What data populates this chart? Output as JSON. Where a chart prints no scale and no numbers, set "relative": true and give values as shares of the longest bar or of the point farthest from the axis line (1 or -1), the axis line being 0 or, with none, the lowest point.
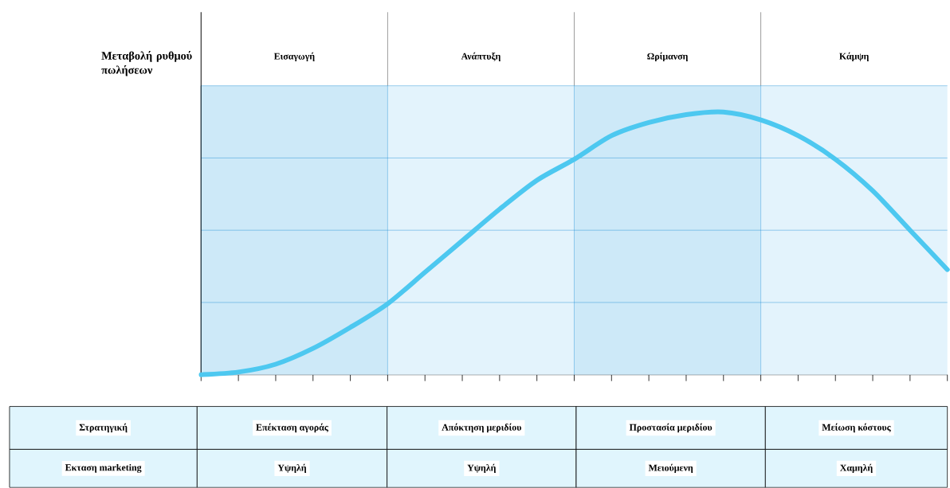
{
  "chart_data": {
    "type": "line",
    "relative": true,
    "categories": [
      null,
      null,
      null,
      null,
      null,
      null,
      null,
      null,
      null,
      null,
      null,
      null,
      null,
      null,
      null,
      null,
      null,
      null,
      null,
      null,
      null
    ],
    "values": [
      0,
      0.01,
      0.04,
      0.1,
      0.18,
      0.27,
      0.39,
      0.51,
      0.63,
      0.74,
      0.82,
      0.91,
      0.96,
      0.99,
      1.0,
      0.97,
      0.91,
      0.82,
      0.7,
      0.55,
      0.4
    ],
    "color": "#4dc8f0",
    "grid": true,
    "annotations": [
      "Μεταβολή ρυθμού πωλήσεων",
      "Εισαγωγή",
      "Ανάπτυξη",
      "Ωρίμανση",
      "Κάμψη",
      "Στρατηγική",
      "Επέκταση αγοράς",
      "Απόκτηση μεριδίου",
      "Προστασία μεριδίου",
      "Μείωση κόστους",
      "Εκταση marketing",
      "Υψηλή",
      "Υψηλή",
      "Μειούμενη",
      "Χαμηλή"
    ]
  }
}
